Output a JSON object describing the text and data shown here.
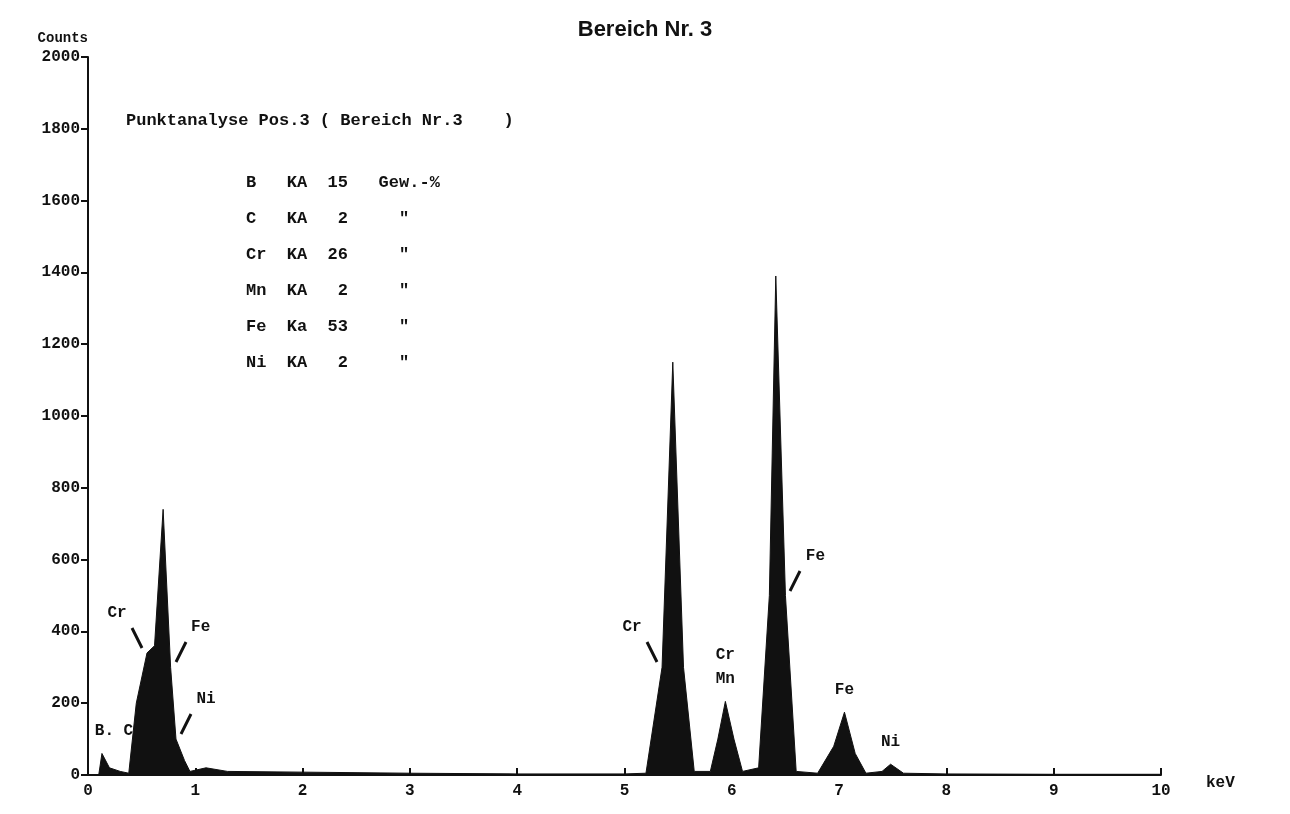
{
  "chart_data": {
    "type": "area",
    "title": "Bereich Nr. 3",
    "xlabel": "keV",
    "ylabel": "Counts",
    "x": [
      0.1,
      0.13,
      0.2,
      0.3,
      0.38,
      0.45,
      0.55,
      0.62,
      0.7,
      0.77,
      0.82,
      0.9,
      0.95,
      1.1,
      1.3,
      2,
      3,
      4,
      5,
      5.2,
      5.35,
      5.45,
      5.55,
      5.65,
      5.8,
      5.87,
      5.94,
      6.02,
      6.1,
      6.25,
      6.35,
      6.41,
      6.5,
      6.6,
      6.8,
      6.95,
      7.05,
      7.15,
      7.25,
      7.4,
      7.48,
      7.6,
      8,
      9,
      10
    ],
    "series": [
      {
        "color": "#111111",
        "values": [
          0,
          60,
          20,
          10,
          5,
          200,
          340,
          360,
          740,
          300,
          100,
          40,
          10,
          20,
          10,
          8,
          5,
          3,
          3,
          5,
          300,
          1150,
          300,
          10,
          10,
          100,
          205,
          100,
          10,
          20,
          500,
          1390,
          500,
          10,
          5,
          80,
          175,
          60,
          5,
          10,
          30,
          5,
          3,
          2,
          2
        ]
      }
    ],
    "xlim": [
      0,
      10
    ],
    "xticks": [
      0,
      1,
      2,
      3,
      4,
      5,
      6,
      7,
      8,
      9,
      10
    ],
    "ylim": [
      0,
      2000
    ],
    "yticks": [
      0,
      200,
      400,
      600,
      800,
      1000,
      1200,
      1400,
      1600,
      1800,
      2000
    ],
    "grid": false,
    "annotations": [
      "Punktanalyse Pos.3 ( Bereich Nr.3    )",
      "B   KA  15   Gew.-%",
      "C   KA   2     \"",
      "Cr  KA  26     \"",
      "Mn  KA   2     \"",
      "Fe  Ka  53     \"",
      "Ni  KA   2     \"",
      {
        "text": "Cr",
        "x": 0.55,
        "y": 340
      },
      {
        "text": "Fe",
        "x": 0.77,
        "y": 300
      },
      {
        "text": "B. C",
        "x": 0.13,
        "y": 60
      },
      {
        "text": "Ni",
        "x": 0.82,
        "y": 100
      },
      {
        "text": "Cr",
        "x": 5.35,
        "y": 300
      },
      {
        "text": "Mn",
        "x": 5.94,
        "y": 205
      },
      {
        "text": "Cr",
        "x": 5.94,
        "y": 205
      },
      {
        "text": "Fe",
        "x": 6.5,
        "y": 500
      },
      {
        "text": "Fe",
        "x": 7.05,
        "y": 175
      },
      {
        "text": "Ni",
        "x": 7.48,
        "y": 30
      }
    ]
  }
}
